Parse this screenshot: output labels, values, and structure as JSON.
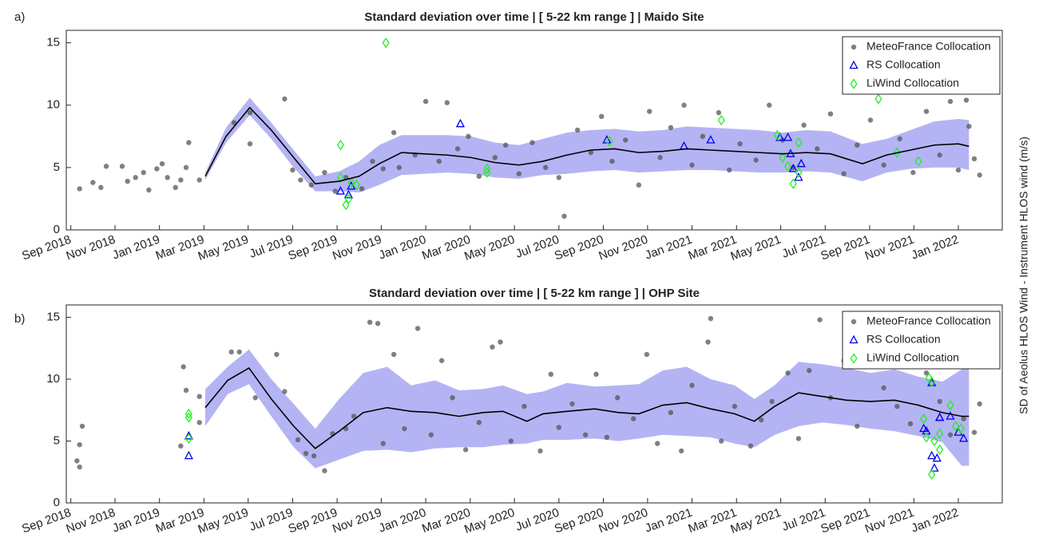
{
  "ylabel": "SD of Aeolus HLOS Wind - Instrument HLOS wind (m/s)",
  "chart_data": [
    {
      "type": "scatter",
      "panel_label": "a)",
      "title": "Standard deviation over time | [ 5-22 km range ] | Maido Site",
      "xlim": [
        2018.65,
        2022.165
      ],
      "ylim": [
        0,
        16
      ],
      "yticks": [
        0,
        5,
        10,
        15
      ],
      "legend": "upper right",
      "xticks": [
        {
          "value": 2018.667,
          "label": "Sep 2018"
        },
        {
          "value": 2018.833,
          "label": "Nov 2018"
        },
        {
          "value": 2019.0,
          "label": "Jan 2019"
        },
        {
          "value": 2019.167,
          "label": "Mar 2019"
        },
        {
          "value": 2019.333,
          "label": "May 2019"
        },
        {
          "value": 2019.5,
          "label": "Jul 2019"
        },
        {
          "value": 2019.667,
          "label": "Sep 2019"
        },
        {
          "value": 2019.833,
          "label": "Nov 2019"
        },
        {
          "value": 2020.0,
          "label": "Jan 2020"
        },
        {
          "value": 2020.167,
          "label": "Mar 2020"
        },
        {
          "value": 2020.333,
          "label": "May 2020"
        },
        {
          "value": 2020.5,
          "label": "Jul 2020"
        },
        {
          "value": 2020.667,
          "label": "Sep 2020"
        },
        {
          "value": 2020.833,
          "label": "Nov 2020"
        },
        {
          "value": 2021.0,
          "label": "Jan 2021"
        },
        {
          "value": 2021.167,
          "label": "Mar 2021"
        },
        {
          "value": 2021.333,
          "label": "May 2021"
        },
        {
          "value": 2021.5,
          "label": "Jul 2021"
        },
        {
          "value": 2021.667,
          "label": "Sep 2021"
        },
        {
          "value": 2021.833,
          "label": "Nov 2021"
        },
        {
          "value": 2022.0,
          "label": "Jan 2022"
        }
      ],
      "band": {
        "color": "#b4b4f4",
        "x": [
          2019.172,
          2019.25,
          2019.339,
          2019.42,
          2019.504,
          2019.585,
          2019.675,
          2019.75,
          2019.825,
          2019.909,
          2019.99,
          2020.08,
          2020.17,
          2020.26,
          2020.35,
          2020.44,
          2020.53,
          2020.62,
          2020.71,
          2020.8,
          2020.89,
          2020.98,
          2021.07,
          2021.16,
          2021.25,
          2021.34,
          2021.43,
          2021.52,
          2021.64,
          2021.73,
          2021.82,
          2021.91,
          2022.0,
          2022.04
        ],
        "upper": [
          4.6,
          8.2,
          10.6,
          8.6,
          6.4,
          4.3,
          4.7,
          5.5,
          6.8,
          7.6,
          7.6,
          7.6,
          7.5,
          7.0,
          6.8,
          7.3,
          7.8,
          8.0,
          8.1,
          7.9,
          8.0,
          8.3,
          8.2,
          8.1,
          8.0,
          7.8,
          8.0,
          7.9,
          6.9,
          7.3,
          8.0,
          8.7,
          8.9,
          8.8
        ],
        "lower": [
          4.0,
          7.0,
          9.2,
          7.3,
          5.0,
          3.1,
          3.1,
          3.0,
          3.6,
          4.4,
          4.5,
          4.6,
          4.5,
          4.2,
          4.1,
          4.4,
          4.5,
          4.7,
          4.8,
          4.6,
          4.7,
          4.8,
          4.8,
          4.7,
          4.6,
          4.6,
          4.7,
          4.6,
          3.9,
          4.6,
          4.9,
          5.0,
          5.0,
          4.8
        ]
      },
      "mean_line": {
        "color": "#000000",
        "x": [
          2019.172,
          2019.25,
          2019.339,
          2019.42,
          2019.504,
          2019.585,
          2019.675,
          2019.75,
          2019.825,
          2019.909,
          2019.99,
          2020.08,
          2020.17,
          2020.26,
          2020.35,
          2020.44,
          2020.53,
          2020.62,
          2020.71,
          2020.8,
          2020.89,
          2020.98,
          2021.07,
          2021.16,
          2021.25,
          2021.34,
          2021.43,
          2021.52,
          2021.64,
          2021.73,
          2021.82,
          2021.91,
          2022.0,
          2022.04
        ],
        "values": [
          4.3,
          7.5,
          9.8,
          8.0,
          5.8,
          3.7,
          3.9,
          4.3,
          5.3,
          6.2,
          6.1,
          6.0,
          5.8,
          5.4,
          5.2,
          5.5,
          6.0,
          6.4,
          6.5,
          6.2,
          6.3,
          6.5,
          6.4,
          6.3,
          6.2,
          6.1,
          6.2,
          6.1,
          5.3,
          6.0,
          6.4,
          6.8,
          6.9,
          6.7
        ]
      },
      "series": [
        {
          "name": "MeteoFrance Collocation",
          "color": "#555555",
          "marker": "circle",
          "x": [
            2018.7,
            2018.75,
            2018.78,
            2018.8,
            2018.86,
            2018.88,
            2018.91,
            2018.94,
            2018.96,
            2018.99,
            2019.01,
            2019.03,
            2019.06,
            2019.08,
            2019.1,
            2019.11,
            2019.15,
            2019.28,
            2019.34,
            2019.34,
            2019.47,
            2019.5,
            2019.53,
            2019.57,
            2019.62,
            2019.66,
            2019.7,
            2019.76,
            2019.8,
            2019.84,
            2019.88,
            2019.9,
            2019.96,
            2020.0,
            2020.05,
            2020.08,
            2020.12,
            2020.16,
            2020.2,
            2020.26,
            2020.3,
            2020.35,
            2020.4,
            2020.45,
            2020.5,
            2020.52,
            2020.57,
            2020.62,
            2020.66,
            2020.7,
            2020.75,
            2020.8,
            2020.84,
            2020.88,
            2020.92,
            2020.97,
            2021.0,
            2021.04,
            2021.1,
            2021.14,
            2021.18,
            2021.24,
            2021.29,
            2021.34,
            2021.38,
            2021.42,
            2021.47,
            2021.52,
            2021.57,
            2021.62,
            2021.67,
            2021.72,
            2021.78,
            2021.83,
            2021.88,
            2021.93,
            2021.97,
            2022.0,
            2022.04,
            2022.06,
            2022.08,
            2022.03
          ],
          "values": [
            3.3,
            3.8,
            3.4,
            5.1,
            5.1,
            3.9,
            4.2,
            4.6,
            3.2,
            4.9,
            5.3,
            4.2,
            3.4,
            4.0,
            5.0,
            7.0,
            4.0,
            8.6,
            6.9,
            9.4,
            10.5,
            4.8,
            4.0,
            3.6,
            4.6,
            3.1,
            4.2,
            3.3,
            5.5,
            4.9,
            7.8,
            5.0,
            6.0,
            10.3,
            5.5,
            10.2,
            6.5,
            7.5,
            4.3,
            5.8,
            6.8,
            4.5,
            7.0,
            5.0,
            4.2,
            1.1,
            8.0,
            6.2,
            9.1,
            5.5,
            7.2,
            3.6,
            9.5,
            5.8,
            8.2,
            10.0,
            5.2,
            7.5,
            9.4,
            4.8,
            6.9,
            5.6,
            10.0,
            7.2,
            5.0,
            8.4,
            6.5,
            9.3,
            4.5,
            6.8,
            8.8,
            5.2,
            7.3,
            4.6,
            9.5,
            6.0,
            10.3,
            4.8,
            8.3,
            5.7,
            4.4,
            10.4
          ]
        },
        {
          "name": "RS Collocation",
          "color": "#0000ee",
          "marker": "triangle",
          "x": [
            2019.68,
            2019.71,
            2019.72,
            2020.13,
            2020.68,
            2020.97,
            2021.07,
            2021.33,
            2021.36,
            2021.37,
            2021.38,
            2021.4,
            2021.41
          ],
          "values": [
            3.1,
            2.8,
            3.5,
            8.5,
            7.2,
            6.7,
            7.2,
            7.4,
            7.4,
            6.1,
            4.9,
            4.2,
            5.3
          ]
        },
        {
          "name": "LiWind Collocation",
          "color": "#22ee22",
          "marker": "diamond",
          "x": [
            2019.68,
            2019.68,
            2019.7,
            2019.71,
            2019.72,
            2019.74,
            2019.85,
            2020.23,
            2020.23,
            2020.69,
            2021.11,
            2021.32,
            2021.34,
            2021.36,
            2021.38,
            2021.4,
            2021.4,
            2021.7,
            2021.77,
            2021.85
          ],
          "values": [
            6.8,
            4.2,
            2.0,
            2.5,
            3.8,
            3.6,
            15.0,
            4.9,
            4.6,
            7.1,
            8.8,
            7.6,
            5.8,
            5.1,
            3.7,
            4.6,
            7.0,
            10.5,
            6.2,
            5.5
          ]
        }
      ]
    },
    {
      "type": "scatter",
      "panel_label": "b)",
      "title": "Standard deviation over time | [ 5-22 km range ] | OHP Site",
      "xlim": [
        2018.65,
        2022.165
      ],
      "ylim": [
        0,
        16
      ],
      "yticks": [
        0,
        5,
        10,
        15
      ],
      "legend": "upper right",
      "xticks": [
        {
          "value": 2018.667,
          "label": "Sep 2018"
        },
        {
          "value": 2018.833,
          "label": "Nov 2018"
        },
        {
          "value": 2019.0,
          "label": "Jan 2019"
        },
        {
          "value": 2019.167,
          "label": "Mar 2019"
        },
        {
          "value": 2019.333,
          "label": "May 2019"
        },
        {
          "value": 2019.5,
          "label": "Jul 2019"
        },
        {
          "value": 2019.667,
          "label": "Sep 2019"
        },
        {
          "value": 2019.833,
          "label": "Nov 2019"
        },
        {
          "value": 2020.0,
          "label": "Jan 2020"
        },
        {
          "value": 2020.167,
          "label": "Mar 2020"
        },
        {
          "value": 2020.333,
          "label": "May 2020"
        },
        {
          "value": 2020.5,
          "label": "Jul 2020"
        },
        {
          "value": 2020.667,
          "label": "Sep 2020"
        },
        {
          "value": 2020.833,
          "label": "Nov 2020"
        },
        {
          "value": 2021.0,
          "label": "Jan 2021"
        },
        {
          "value": 2021.167,
          "label": "Mar 2021"
        },
        {
          "value": 2021.333,
          "label": "May 2021"
        },
        {
          "value": 2021.5,
          "label": "Jul 2021"
        },
        {
          "value": 2021.667,
          "label": "Sep 2021"
        },
        {
          "value": 2021.833,
          "label": "Nov 2021"
        },
        {
          "value": 2022.0,
          "label": "Jan 2022"
        }
      ],
      "band": {
        "color": "#b4b4f4",
        "x": [
          2019.172,
          2019.256,
          2019.336,
          2019.42,
          2019.504,
          2019.585,
          2019.675,
          2019.765,
          2019.855,
          2019.945,
          2020.035,
          2020.125,
          2020.215,
          2020.29,
          2020.38,
          2020.44,
          2020.53,
          2020.634,
          2020.724,
          2020.8,
          2020.89,
          2020.98,
          2021.07,
          2021.16,
          2021.234,
          2021.31,
          2021.4,
          2021.49,
          2021.58,
          2021.67,
          2021.76,
          2021.85,
          2021.94,
          2022.013,
          2022.04
        ],
        "upper": [
          9.2,
          11.0,
          12.4,
          10.0,
          8.0,
          6.0,
          8.4,
          10.5,
          11.0,
          9.5,
          9.9,
          9.1,
          9.2,
          9.5,
          8.8,
          9.0,
          9.7,
          9.4,
          9.5,
          9.6,
          10.7,
          11.0,
          10.0,
          9.5,
          8.4,
          9.5,
          11.4,
          11.2,
          10.9,
          10.5,
          10.8,
          10.2,
          9.8,
          10.8,
          11.0
        ],
        "lower": [
          6.2,
          8.8,
          9.6,
          7.0,
          4.5,
          2.8,
          3.5,
          4.2,
          4.3,
          4.1,
          4.4,
          4.5,
          4.5,
          4.7,
          4.8,
          5.1,
          5.1,
          5.2,
          5.0,
          5.2,
          5.5,
          5.4,
          5.3,
          4.8,
          4.5,
          5.5,
          6.2,
          6.5,
          6.3,
          6.0,
          5.8,
          5.4,
          4.9,
          3.0,
          3.0
        ]
      },
      "mean_line": {
        "color": "#000000",
        "x": [
          2019.172,
          2019.256,
          2019.336,
          2019.42,
          2019.504,
          2019.585,
          2019.675,
          2019.765,
          2019.855,
          2019.945,
          2020.035,
          2020.125,
          2020.215,
          2020.29,
          2020.38,
          2020.44,
          2020.53,
          2020.634,
          2020.724,
          2020.8,
          2020.89,
          2020.98,
          2021.07,
          2021.16,
          2021.234,
          2021.31,
          2021.4,
          2021.49,
          2021.58,
          2021.67,
          2021.76,
          2021.85,
          2021.94,
          2022.013,
          2022.04
        ],
        "values": [
          7.7,
          9.9,
          10.9,
          8.4,
          6.2,
          4.4,
          5.8,
          7.3,
          7.7,
          7.4,
          7.3,
          7.0,
          7.3,
          7.4,
          6.6,
          7.2,
          7.4,
          7.6,
          7.3,
          7.2,
          7.9,
          8.1,
          7.6,
          7.2,
          6.6,
          7.8,
          8.9,
          8.6,
          8.3,
          8.2,
          8.3,
          7.9,
          7.3,
          7.0,
          7.0
        ]
      },
      "series": [
        {
          "name": "MeteoFrance Collocation",
          "color": "#555555",
          "marker": "circle",
          "x": [
            2018.71,
            2018.7,
            2018.69,
            2018.7,
            2019.08,
            2019.09,
            2019.1,
            2019.15,
            2019.15,
            2019.27,
            2019.3,
            2019.36,
            2019.44,
            2019.47,
            2019.52,
            2019.55,
            2019.58,
            2019.62,
            2019.65,
            2019.7,
            2019.73,
            2019.79,
            2019.82,
            2019.84,
            2019.88,
            2019.92,
            2019.97,
            2020.02,
            2020.06,
            2020.1,
            2020.15,
            2020.2,
            2020.25,
            2020.28,
            2020.32,
            2020.37,
            2020.43,
            2020.47,
            2020.5,
            2020.55,
            2020.6,
            2020.64,
            2020.68,
            2020.72,
            2020.78,
            2020.83,
            2020.87,
            2020.92,
            2020.96,
            2021.0,
            2021.06,
            2021.07,
            2021.11,
            2021.16,
            2021.22,
            2021.26,
            2021.3,
            2021.36,
            2021.4,
            2021.44,
            2021.48,
            2021.52,
            2021.57,
            2021.62,
            2021.67,
            2021.72,
            2021.77,
            2021.82,
            2021.88,
            2021.93,
            2021.97,
            2022.02,
            2022.06,
            2022.08
          ],
          "values": [
            6.2,
            4.7,
            3.4,
            2.9,
            4.6,
            11.0,
            9.1,
            8.6,
            6.5,
            12.2,
            12.2,
            8.5,
            12.0,
            9.0,
            5.1,
            4.0,
            3.8,
            2.6,
            5.6,
            6.0,
            7.0,
            14.6,
            14.5,
            4.8,
            12.0,
            6.0,
            14.1,
            5.5,
            11.5,
            8.5,
            4.3,
            6.5,
            12.6,
            13.0,
            5.0,
            7.8,
            4.2,
            10.4,
            6.1,
            8.0,
            5.5,
            10.4,
            5.3,
            8.5,
            6.8,
            12.0,
            4.8,
            7.3,
            4.2,
            9.5,
            13.0,
            14.9,
            5.0,
            7.8,
            4.6,
            6.7,
            8.2,
            10.5,
            5.2,
            10.7,
            14.8,
            8.5,
            11.5,
            6.2,
            12.0,
            9.3,
            7.8,
            6.4,
            10.5,
            8.2,
            5.5,
            6.8,
            5.7,
            8.0
          ]
        },
        {
          "name": "RS Collocation",
          "color": "#0000ee",
          "marker": "triangle",
          "x": [
            2019.11,
            2019.11,
            2021.87,
            2021.88,
            2021.9,
            2021.9,
            2021.91,
            2021.92,
            2021.93,
            2021.93,
            2021.97,
            2022.0,
            2022.02
          ],
          "values": [
            5.4,
            3.8,
            6.0,
            5.8,
            9.7,
            3.8,
            2.8,
            3.6,
            6.9,
            6.9,
            7.0,
            5.7,
            5.2
          ]
        },
        {
          "name": "LiWind Collocation",
          "color": "#22ee22",
          "marker": "diamond",
          "x": [
            2019.11,
            2019.11,
            2019.11,
            2021.87,
            2021.88,
            2021.89,
            2021.9,
            2021.9,
            2021.91,
            2021.93,
            2021.93,
            2021.97,
            2021.99,
            2022.01
          ],
          "values": [
            7.2,
            6.9,
            5.2,
            6.8,
            5.3,
            10.1,
            9.8,
            2.3,
            5.0,
            5.6,
            4.3,
            7.9,
            6.2,
            6.0
          ]
        }
      ]
    }
  ]
}
